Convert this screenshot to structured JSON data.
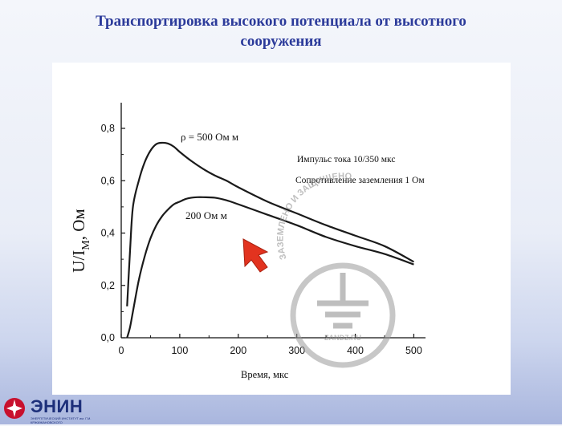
{
  "slide": {
    "title_line1": "Транспортировка высокого потенциала от высотного",
    "title_line2": "сооружения"
  },
  "logo": {
    "name": "ЭНИН",
    "subtitle": "ЭНЕРГЕТИЧЕСКИЙ ИНСТИТУТ им. Г.М. КРЖИЖАНОВСКОГО"
  },
  "watermark": {
    "text": "ЗАЗЕМЛЕНО И ЗАЩИЩЕНО",
    "site": "ZANDZ.RU"
  },
  "colors": {
    "title": "#2b3a9a",
    "curve": "#1a1a1a",
    "cursor": "#e2331f",
    "watermark": "#9a9a9a"
  },
  "chart_data": {
    "type": "line",
    "xlabel": "Время,  мкс",
    "ylabel": "U/I",
    "ylabel_sub": "M",
    "ylabel_unit": ",  Ом",
    "xlim": [
      0,
      520
    ],
    "ylim": [
      0,
      0.8
    ],
    "xticks": [
      0,
      100,
      200,
      300,
      400,
      500
    ],
    "xtick_labels": [
      "0",
      "100",
      "200",
      "300",
      "400",
      "500"
    ],
    "yticks": [
      0.0,
      0.2,
      0.4,
      0.6,
      0.8
    ],
    "ytick_labels": [
      "0,0",
      "0,2",
      "0,4",
      "0,6",
      "0,8"
    ],
    "grid": false,
    "annotations": [
      "Импульс тока 10/350 мкс",
      "Сопротивление заземления 1 Ом"
    ],
    "series": [
      {
        "name": "ρ = 500 Ом м",
        "x": [
          10,
          15,
          20,
          30,
          40,
          50,
          60,
          70,
          80,
          90,
          100,
          120,
          140,
          160,
          180,
          200,
          250,
          300,
          350,
          400,
          450,
          500
        ],
        "y": [
          0.12,
          0.33,
          0.5,
          0.6,
          0.67,
          0.715,
          0.74,
          0.745,
          0.742,
          0.73,
          0.71,
          0.675,
          0.645,
          0.62,
          0.6,
          0.575,
          0.52,
          0.475,
          0.43,
          0.39,
          0.35,
          0.29
        ]
      },
      {
        "name": "200 Ом м",
        "x": [
          10,
          15,
          20,
          30,
          40,
          50,
          60,
          70,
          80,
          90,
          100,
          110,
          120,
          130,
          140,
          160,
          180,
          200,
          250,
          300,
          350,
          400,
          450,
          500
        ],
        "y": [
          0.0,
          0.04,
          0.1,
          0.22,
          0.31,
          0.38,
          0.43,
          0.465,
          0.49,
          0.51,
          0.52,
          0.53,
          0.535,
          0.537,
          0.537,
          0.535,
          0.525,
          0.51,
          0.47,
          0.43,
          0.385,
          0.35,
          0.32,
          0.28
        ]
      }
    ]
  }
}
